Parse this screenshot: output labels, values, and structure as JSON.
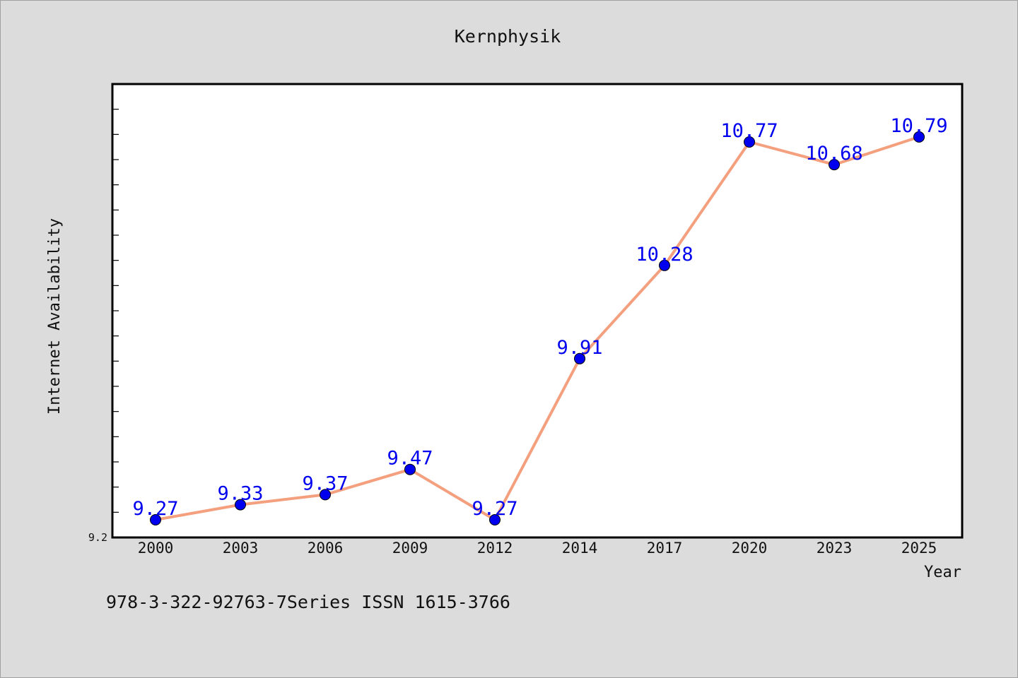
{
  "chart_data": {
    "type": "line",
    "title": "Kernphysik",
    "xlabel": "Year",
    "ylabel": "Internet Availability",
    "categories": [
      "2000",
      "2003",
      "2006",
      "2009",
      "2012",
      "2014",
      "2017",
      "2020",
      "2023",
      "2025"
    ],
    "series": [
      {
        "values": [
          9.27,
          9.33,
          9.37,
          9.47,
          9.27,
          9.91,
          10.28,
          10.77,
          10.68,
          10.79
        ],
        "labels": [
          "9.27",
          "9.33",
          "9.37",
          "9.47",
          "9.27",
          "9.91",
          "10.28",
          "10.77",
          "10.68",
          "10.79"
        ],
        "line_color": "#f4a07f",
        "marker_color": "#0000ee",
        "label_color": "#0000ee"
      }
    ],
    "y_tick_labels": [
      "9.2"
    ],
    "ylim": [
      9.2,
      11.0
    ],
    "grid": false,
    "legend": "none"
  },
  "footer_text": "978-3-322-92763-7Series ISSN 1615-3766",
  "colors": {
    "background": "#dcdcdc",
    "plot_area": "#ffffff",
    "axes": "#000000"
  }
}
